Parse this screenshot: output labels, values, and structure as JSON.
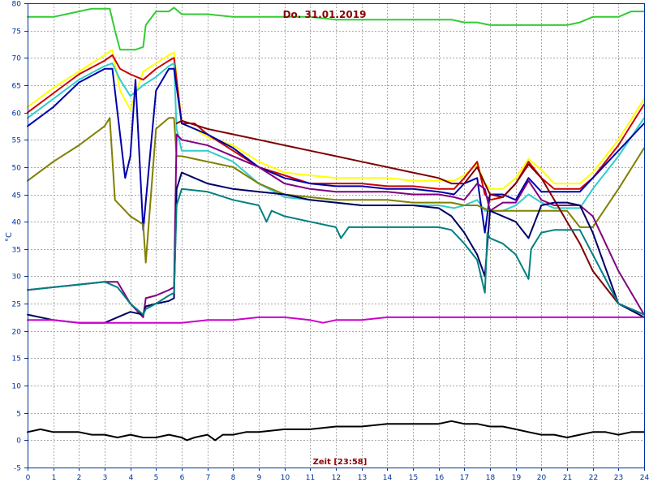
{
  "chart_data": {
    "type": "line",
    "title": "Do. 31.01.2019",
    "xlabel": "Zeit [23:58]",
    "ylabel": "°C",
    "xlim": [
      0,
      24
    ],
    "ylim": [
      -5,
      80
    ],
    "x_ticks": [
      "0",
      "1",
      "2",
      "3",
      "4",
      "5",
      "6",
      "7",
      "8",
      "9",
      "10",
      "11",
      "12",
      "13",
      "14",
      "15",
      "16",
      "17",
      "18",
      "19",
      "20",
      "21",
      "22",
      "23",
      "24"
    ],
    "y_ticks": [
      "-5",
      "0",
      "5",
      "10",
      "15",
      "20",
      "25",
      "30",
      "35",
      "40",
      "45",
      "50",
      "55",
      "60",
      "65",
      "70",
      "75",
      "80"
    ],
    "grid": true,
    "series": [
      {
        "color": "#33cc33",
        "x": [
          0,
          1,
          1.5,
          2,
          2.5,
          3,
          3.2,
          3.4,
          3.6,
          4.2,
          4.5,
          4.6,
          5,
          5.5,
          5.7,
          6,
          7,
          8,
          9,
          10,
          11,
          12,
          13,
          14,
          15,
          16,
          16.5,
          17,
          17.5,
          18,
          19,
          20,
          21,
          21.5,
          22,
          23,
          23.5,
          24
        ],
        "y": [
          77.5,
          77.5,
          78,
          78.5,
          79,
          79,
          79,
          75,
          71.5,
          71.5,
          72,
          76,
          78.5,
          78.5,
          79.2,
          78,
          78,
          77.5,
          77.5,
          77.5,
          77.5,
          77,
          77,
          77,
          77,
          77,
          77,
          76.5,
          76.5,
          76,
          76,
          76,
          76,
          76.5,
          77.5,
          77.5,
          78.5,
          78.5
        ]
      },
      {
        "color": "#ffff00",
        "x": [
          0,
          1,
          2,
          3,
          3.3,
          3.6,
          4,
          4.5,
          5,
          5.5,
          5.7,
          6,
          6.5,
          7,
          8,
          9,
          10,
          11,
          12,
          13,
          14,
          15,
          16,
          16.6,
          17,
          17.5,
          17.8,
          18,
          18.5,
          19,
          19.5,
          20,
          20.5,
          21,
          21.5,
          22,
          23,
          24
        ],
        "y": [
          61,
          64.5,
          67.5,
          70.5,
          71.5,
          64,
          60.5,
          67.5,
          69,
          70.5,
          71,
          58,
          57,
          55.5,
          54,
          51,
          49,
          48.5,
          48,
          48,
          48,
          47.5,
          47.5,
          47.5,
          48.5,
          50.5,
          47,
          46,
          46,
          48,
          51.5,
          49.5,
          47,
          47,
          47,
          49,
          55,
          62.5
        ]
      },
      {
        "color": "#cc0000",
        "x": [
          0,
          1,
          2,
          3,
          3.3,
          3.6,
          4,
          4.5,
          5,
          5.5,
          5.7,
          6,
          6.5,
          7,
          8,
          9,
          10,
          11,
          12,
          13,
          14,
          15,
          16,
          16.6,
          17,
          17.5,
          17.8,
          18,
          18.5,
          19,
          19.5,
          20,
          20.5,
          21,
          21.5,
          22,
          23,
          24
        ],
        "y": [
          60,
          63.5,
          67,
          69.5,
          70.5,
          68,
          67,
          66,
          68,
          69.5,
          70,
          58,
          58,
          56,
          53,
          50,
          48.5,
          47,
          47,
          47,
          46.5,
          46.5,
          46,
          46,
          48,
          51,
          45,
          44,
          44.5,
          47,
          51,
          48,
          46,
          46,
          46,
          48,
          54,
          61.5
        ]
      },
      {
        "color": "#33cccc",
        "x": [
          0,
          1,
          2,
          3,
          3.3,
          3.6,
          4,
          4.5,
          5,
          5.5,
          5.7,
          5.8,
          6,
          7,
          8,
          9,
          10,
          11,
          12,
          13,
          14,
          15,
          16,
          16.6,
          17,
          17.5,
          17.8,
          18,
          18.5,
          19,
          19.5,
          20,
          20.5,
          21,
          21.5,
          22,
          23,
          24
        ],
        "y": [
          59,
          62.5,
          66,
          68.5,
          69,
          66,
          63,
          65,
          66.5,
          68.5,
          69,
          57,
          53,
          53,
          51,
          47,
          44.5,
          44,
          43.5,
          43,
          43,
          43,
          43,
          42.5,
          43,
          44,
          42,
          42,
          42,
          43,
          45,
          43.5,
          42.5,
          42.5,
          42.5,
          46,
          52,
          59
        ]
      },
      {
        "color": "#0000aa",
        "x": [
          0,
          1,
          2,
          3,
          3.3,
          3.6,
          3.8,
          4,
          4.2,
          4.5,
          5,
          5.5,
          5.7,
          6,
          7,
          8,
          9,
          10,
          11,
          12,
          13,
          14,
          15,
          16,
          16.6,
          17,
          17.5,
          17.8,
          18,
          18.5,
          19,
          19.5,
          20,
          20.5,
          21,
          21.5,
          22,
          23,
          24
        ],
        "y": [
          57.5,
          61,
          65.5,
          68,
          68,
          56,
          48,
          52,
          66,
          38.5,
          64,
          68,
          68,
          58,
          56,
          53.5,
          50,
          48,
          47,
          46.5,
          46.5,
          46,
          46,
          45.5,
          45,
          47,
          48,
          38,
          45,
          45,
          44,
          48,
          45.5,
          45.5,
          45.5,
          45.5,
          48,
          53,
          58
        ]
      },
      {
        "color": "#808000",
        "x": [
          0,
          1,
          2,
          3,
          3.2,
          3.4,
          4,
          4.5,
          4.6,
          5,
          5.5,
          5.7,
          5.8,
          6,
          7,
          8,
          9,
          10,
          11,
          12,
          13,
          14,
          15,
          16,
          16.5,
          17,
          17.5,
          18,
          19,
          20,
          21,
          21.5,
          22,
          23,
          24
        ],
        "y": [
          47.5,
          51,
          54,
          57.5,
          59,
          44,
          41,
          39.5,
          32.5,
          57,
          59,
          59,
          52,
          52,
          51,
          50,
          47,
          45,
          44.5,
          44,
          44,
          44,
          43.5,
          43.5,
          43.5,
          43,
          43,
          42,
          42,
          42,
          42,
          39,
          39,
          46,
          53.5
        ]
      },
      {
        "color": "#800080",
        "x": [
          0,
          1,
          2,
          3,
          3.5,
          4,
          4.5,
          4.6,
          5,
          5.5,
          5.7,
          5.8,
          6,
          7,
          8,
          9,
          10,
          11,
          12,
          13,
          14,
          15,
          16,
          16.6,
          17,
          17.5,
          17.8,
          18,
          18.5,
          19,
          19.5,
          20,
          20.5,
          21,
          21.5,
          22,
          23,
          24
        ],
        "y": [
          27.5,
          28,
          28.5,
          29,
          29,
          25,
          22.5,
          26,
          26.5,
          27.5,
          28,
          56,
          55,
          54,
          52,
          50,
          47,
          46,
          45.5,
          45.5,
          45.5,
          45,
          45,
          44.5,
          44,
          47,
          46,
          42,
          43.5,
          43.5,
          47.5,
          44,
          43,
          43,
          43,
          41,
          31,
          23
        ]
      },
      {
        "color": "#800000",
        "x": [
          5.8,
          6,
          7,
          8,
          9,
          10,
          11,
          12,
          13,
          14,
          15,
          16,
          16.5,
          17,
          17.5,
          17.8,
          18,
          18.5,
          19,
          19.5,
          20,
          20.5,
          21,
          21.5,
          22,
          23,
          24
        ],
        "y": [
          58,
          58.5,
          57,
          56,
          55,
          54,
          53,
          52,
          51,
          50,
          49,
          48,
          47,
          47,
          50,
          47,
          45,
          44.5,
          47,
          50.5,
          48,
          44,
          40,
          36,
          31,
          25,
          23
        ]
      },
      {
        "color": "#000066",
        "x": [
          0,
          1,
          2,
          3,
          3.5,
          4,
          4.5,
          4.6,
          5,
          5.5,
          5.7,
          5.8,
          6,
          7,
          8,
          9,
          10,
          11,
          12,
          13,
          14,
          15,
          16,
          16.5,
          17,
          17.5,
          17.8,
          18,
          18.5,
          19,
          19.5,
          20,
          20.5,
          21,
          21.5,
          22,
          23,
          24
        ],
        "y": [
          23,
          22,
          21.5,
          21.5,
          22.5,
          23.5,
          23,
          24.5,
          25,
          25.5,
          26,
          46,
          49,
          47,
          46,
          45.5,
          45,
          44,
          43.5,
          43,
          43,
          43,
          42.5,
          41,
          38,
          34,
          30,
          42,
          41,
          40,
          37,
          43,
          43.5,
          43.5,
          43,
          38,
          25,
          22.5
        ]
      },
      {
        "color": "#008080",
        "x": [
          0,
          1,
          2,
          3,
          3.5,
          4,
          4.5,
          4.6,
          5,
          5.5,
          5.7,
          5.8,
          6,
          7,
          8,
          9,
          9.3,
          9.5,
          10,
          11,
          12,
          12.2,
          12.5,
          13,
          14,
          15,
          16,
          16.5,
          17,
          17.5,
          17.8,
          17.9,
          18,
          18.5,
          19,
          19.5,
          19.6,
          20,
          20.5,
          21,
          21.5,
          22,
          23,
          24
        ],
        "y": [
          27.5,
          28,
          28.5,
          29,
          28,
          25,
          23,
          24,
          25,
          26.5,
          27,
          43,
          46,
          45.5,
          44,
          43,
          40,
          42,
          41,
          40,
          39,
          37,
          39,
          39,
          39,
          39,
          39,
          38.5,
          36,
          33,
          27,
          38,
          37,
          36,
          34,
          29.5,
          35,
          38,
          38.5,
          38.5,
          38.5,
          34,
          25,
          23
        ]
      },
      {
        "color": "#cc00cc",
        "x": [
          0,
          1,
          2,
          3,
          4,
          5,
          6,
          7,
          8,
          9,
          10,
          11,
          11.5,
          12,
          13,
          14,
          15,
          16,
          17,
          18,
          19,
          20,
          21,
          22,
          23,
          24
        ],
        "y": [
          22,
          22,
          21.5,
          21.5,
          21.5,
          21.5,
          21.5,
          22,
          22,
          22.5,
          22.5,
          22,
          21.5,
          22,
          22,
          22.5,
          22.5,
          22.5,
          22.5,
          22.5,
          22.5,
          22.5,
          22.5,
          22.5,
          22.5,
          22.5
        ]
      },
      {
        "color": "#000000",
        "x": [
          0,
          0.5,
          1,
          1.5,
          2,
          2.5,
          3,
          3.5,
          4,
          4.5,
          5,
          5.5,
          6,
          6.2,
          6.5,
          7,
          7.3,
          7.6,
          8,
          8.5,
          9,
          10,
          11,
          12,
          13,
          14,
          15,
          16,
          16.5,
          17,
          17.5,
          18,
          18.5,
          19,
          19.5,
          20,
          20.5,
          21,
          21.5,
          22,
          22.5,
          23,
          23.5,
          24
        ],
        "y": [
          1.5,
          2,
          1.5,
          1.5,
          1.5,
          1,
          1,
          0.5,
          1,
          0.5,
          0.5,
          1,
          0.5,
          0,
          0.5,
          1,
          0,
          1,
          1,
          1.5,
          1.5,
          2,
          2,
          2.5,
          2.5,
          3,
          3,
          3,
          3.5,
          3,
          3,
          2.5,
          2.5,
          2,
          1.5,
          1,
          1,
          0.5,
          1,
          1.5,
          1.5,
          1,
          1.5,
          1.5
        ]
      }
    ]
  }
}
